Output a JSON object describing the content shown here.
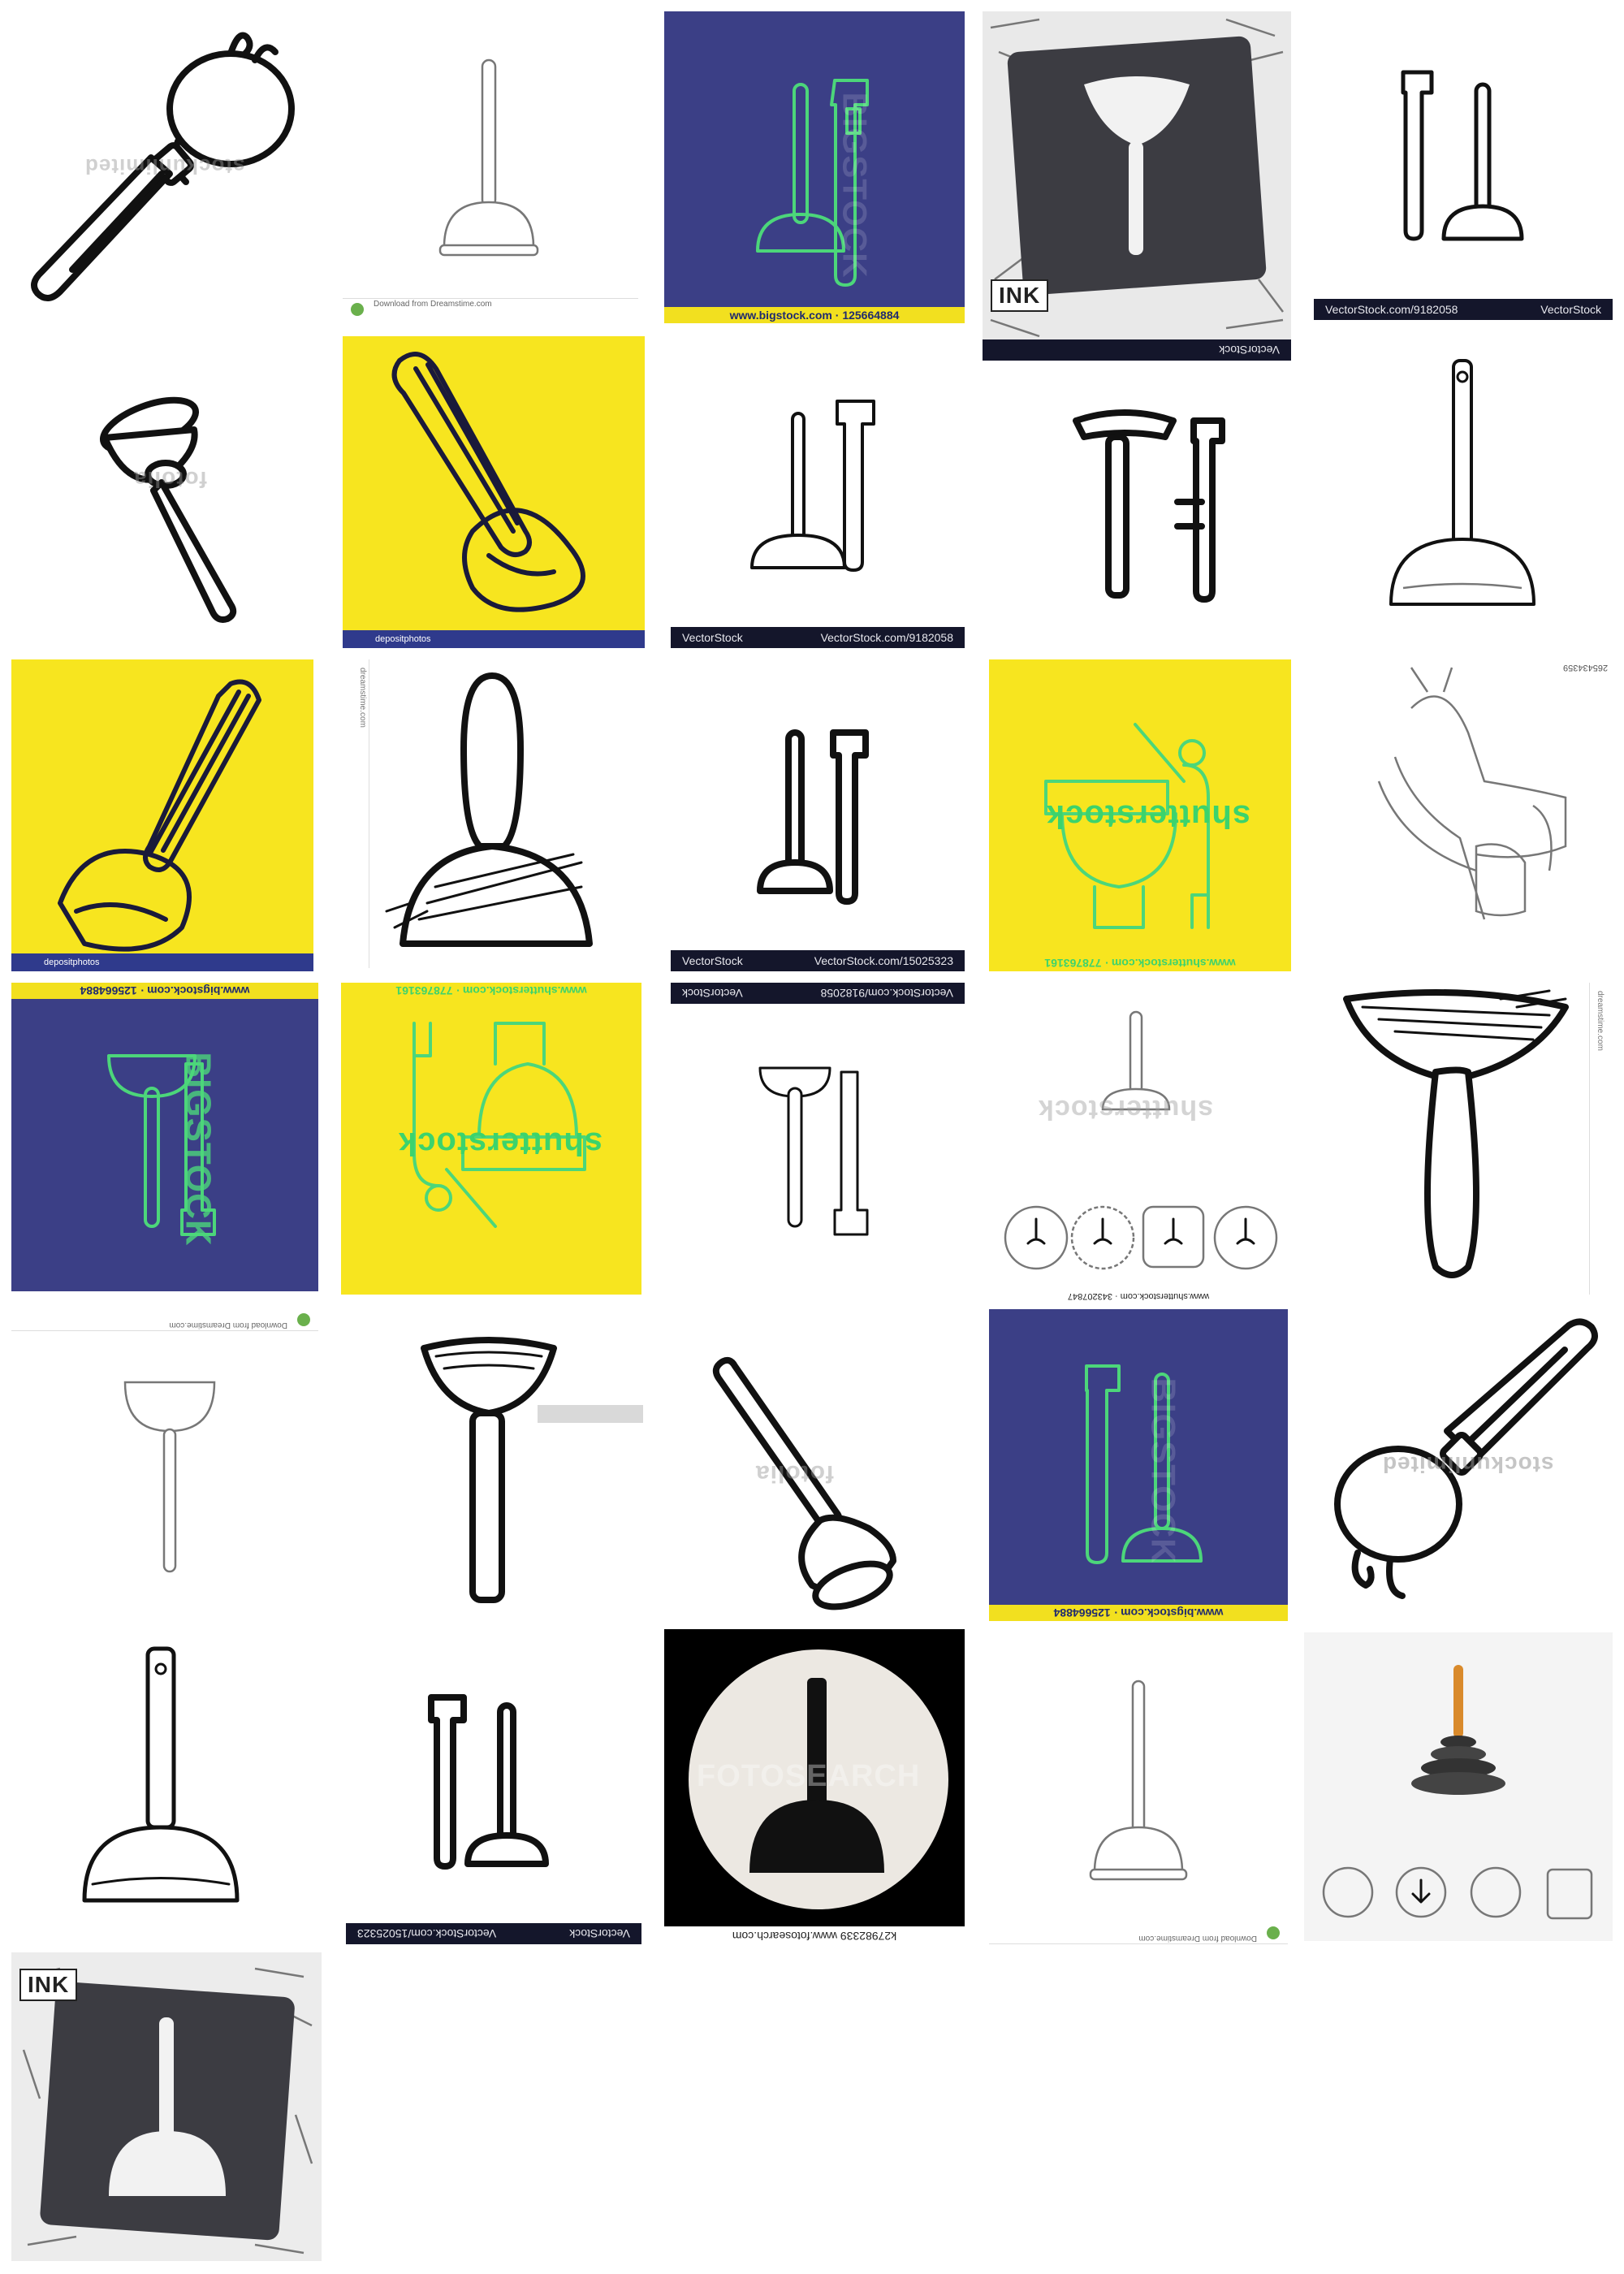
{
  "tiles": [
    {
      "id": 1,
      "watermark": "stockunlimited"
    },
    {
      "id": 2,
      "credit": "Download from Dreamstime.com"
    },
    {
      "id": 3,
      "watermark": "BIGSTOCK",
      "footer": "www.bigstock.com · 125664884"
    },
    {
      "id": 4,
      "label": "INK",
      "footer": "VectorStock"
    },
    {
      "id": 5,
      "footer_left": "VectorStock",
      "footer_right": "VectorStock.com/9182058"
    },
    {
      "id": 6,
      "watermark": "fotolia"
    },
    {
      "id": 7,
      "footer": "depositphotos"
    },
    {
      "id": 8,
      "footer_left": "VectorStock",
      "footer_right": "VectorStock.com/9182058"
    },
    {
      "id": 9
    },
    {
      "id": 10
    },
    {
      "id": 11,
      "footer": "depositphotos"
    },
    {
      "id": 12,
      "credit": "dreamstime.com"
    },
    {
      "id": 13,
      "footer_left": "VectorStock",
      "footer_right": "VectorStock.com/15025323"
    },
    {
      "id": 14,
      "watermark": "shutterstock",
      "footer": "www.shutterstock.com · 778763161"
    },
    {
      "id": 15,
      "label": "265434359"
    },
    {
      "id": 16,
      "watermark": "BIGSTOCK",
      "footer": "www.bigstock.com · 125664884"
    },
    {
      "id": 17,
      "watermark": "shutterstock",
      "footer": "www.shutterstock.com · 778763161"
    },
    {
      "id": 18,
      "footer_left": "VectorStock",
      "footer_right": "VectorStock.com/9182058"
    },
    {
      "id": 19,
      "watermark": "shutterstock",
      "footer": "www.shutterstock.com · 343207847"
    },
    {
      "id": 20,
      "credit": "dreamstime.com"
    },
    {
      "id": 21,
      "credit": "Download from Dreamstime.com"
    },
    {
      "id": 22
    },
    {
      "id": 23,
      "watermark": "fotolia"
    },
    {
      "id": 24,
      "watermark": "BIGSTOCK",
      "footer": "www.bigstock.com · 125664884"
    },
    {
      "id": 25,
      "watermark": "stockunlimited"
    },
    {
      "id": 26
    },
    {
      "id": 27,
      "footer_left": "VectorStock",
      "footer_right": "VectorStock.com/15025323"
    },
    {
      "id": 28,
      "watermark": "FOTOSEARCH",
      "footer": "k27982339 www.fotosearch.com"
    },
    {
      "id": 29,
      "credit": "Download from Dreamstime.com"
    },
    {
      "id": 30
    },
    {
      "id": 31,
      "label": "INK"
    }
  ],
  "colors": {
    "yellow": "#f7e51f",
    "navy": "#3b3f86",
    "green": "#4cd67a",
    "slate": "#3c3c42",
    "black": "#000000"
  }
}
